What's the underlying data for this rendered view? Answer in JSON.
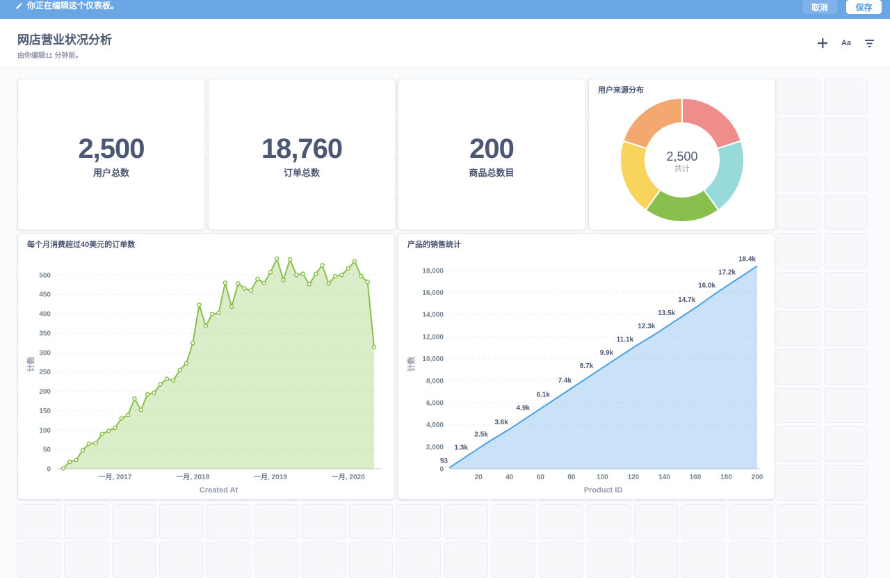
{
  "topbar": {
    "message": "你正在编辑这个仪表板。",
    "cancel_label": "取消",
    "save_label": "保存"
  },
  "header": {
    "title": "网店营业状况分析",
    "subtitle": "由你编辑11 分钟前。",
    "font_button": "Aa"
  },
  "cards": {
    "users": {
      "value": "2,500",
      "label": "用户总数"
    },
    "orders": {
      "value": "18,760",
      "label": "订单总数"
    },
    "products": {
      "value": "200",
      "label": "商品总数目"
    }
  },
  "colors": {
    "accent": "#509ee3",
    "topbar": "#6ba6e4",
    "green": "#88bf4d",
    "blue": "#509ee3"
  },
  "chart_data": [
    {
      "type": "pie",
      "title": "用户来源分布",
      "center_value": "2,500",
      "center_label": "共计",
      "values": [
        500,
        500,
        500,
        500,
        500
      ],
      "colors": [
        "#ef8c8c",
        "#98d9d9",
        "#88bf4d",
        "#f9d45c",
        "#f2a86f"
      ]
    },
    {
      "type": "area",
      "title": "每个月消费超过40美元的订单数",
      "xlabel": "Created At",
      "ylabel": "计数",
      "ylim": [
        0,
        540
      ],
      "yticks": [
        0,
        50,
        100,
        150,
        200,
        250,
        300,
        350,
        400,
        450,
        500
      ],
      "xticks": [
        {
          "label": "一月, 2017",
          "index": 8
        },
        {
          "label": "一月, 2018",
          "index": 20
        },
        {
          "label": "一月, 2019",
          "index": 32
        },
        {
          "label": "一月, 2020",
          "index": 44
        }
      ],
      "values": [
        1,
        18,
        23,
        48,
        65,
        66,
        90,
        98,
        106,
        130,
        139,
        181,
        152,
        192,
        196,
        218,
        232,
        228,
        255,
        272,
        324,
        423,
        368,
        399,
        402,
        480,
        418,
        478,
        465,
        460,
        490,
        479,
        507,
        542,
        487,
        540,
        500,
        503,
        476,
        503,
        525,
        478,
        497,
        500,
        517,
        535,
        497,
        482,
        314
      ]
    },
    {
      "type": "area",
      "title": "产品的销售统计",
      "xlabel": "Product ID",
      "ylabel": "计数",
      "xlim": [
        1,
        200
      ],
      "ylim": [
        0,
        19000
      ],
      "xticks": [
        20,
        40,
        60,
        80,
        100,
        120,
        140,
        160,
        180,
        200
      ],
      "yticks": [
        0,
        2000,
        4000,
        6000,
        8000,
        10000,
        12000,
        14000,
        16000,
        18000
      ],
      "ytick_labels": [
        "0",
        "2,000",
        "4,000",
        "6,000",
        "8,000",
        "10,000",
        "12,000",
        "14,000",
        "16,000",
        "18,000"
      ],
      "points": [
        {
          "x": 1,
          "y": 93,
          "label": "93"
        },
        {
          "x": 14,
          "y": 1300,
          "label": "1.3k"
        },
        {
          "x": 27,
          "y": 2500,
          "label": "2.5k"
        },
        {
          "x": 40,
          "y": 3600,
          "label": "3.6k"
        },
        {
          "x": 54,
          "y": 4900,
          "label": "4.9k"
        },
        {
          "x": 67,
          "y": 6100,
          "label": "6.1k"
        },
        {
          "x": 81,
          "y": 7400,
          "label": "7.4k"
        },
        {
          "x": 95,
          "y": 8700,
          "label": "8.7k"
        },
        {
          "x": 108,
          "y": 9900,
          "label": "9.9k"
        },
        {
          "x": 121,
          "y": 11100,
          "label": "11.1k"
        },
        {
          "x": 135,
          "y": 12300,
          "label": "12.3k"
        },
        {
          "x": 148,
          "y": 13500,
          "label": "13.5k"
        },
        {
          "x": 161,
          "y": 14700,
          "label": "14.7k"
        },
        {
          "x": 174,
          "y": 16000,
          "label": "16.0k"
        },
        {
          "x": 187,
          "y": 17200,
          "label": "17.2k"
        },
        {
          "x": 200,
          "y": 18400,
          "label": "18.4k"
        }
      ]
    }
  ]
}
